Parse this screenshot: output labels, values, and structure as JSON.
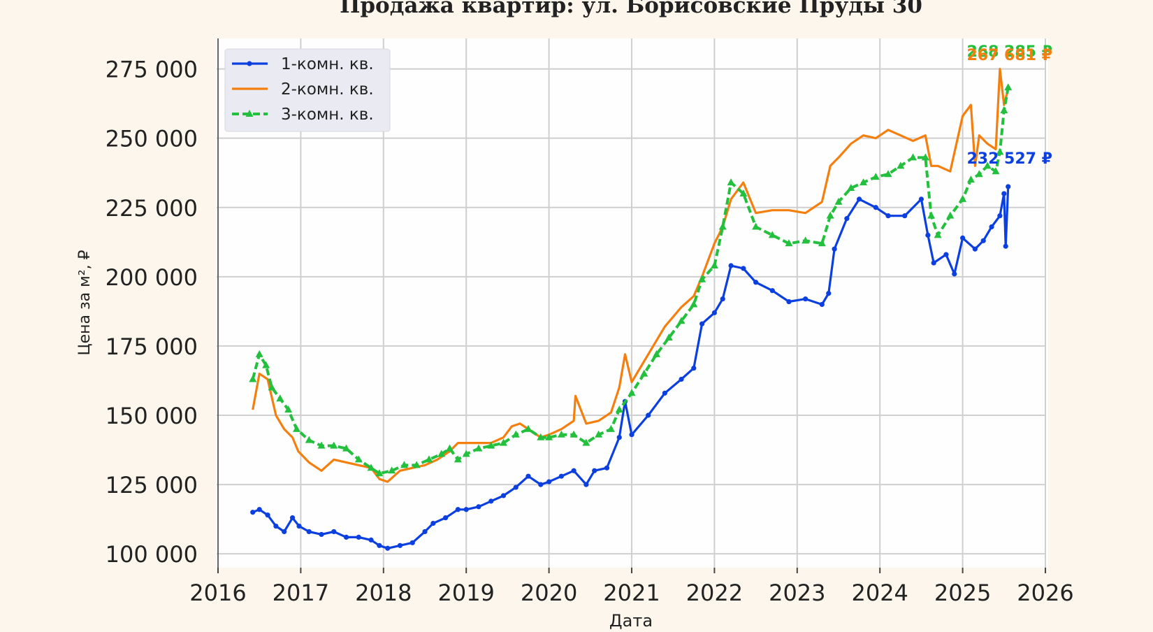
{
  "chart_data": {
    "type": "line",
    "title": "Продажа квартир: ул. Борисовские Пруды 30",
    "xlabel": "Дата",
    "ylabel": "Цена за м², ₽",
    "xlim": [
      2016,
      2026
    ],
    "ylim": [
      95000,
      286000
    ],
    "x_ticks": [
      2016,
      2017,
      2018,
      2019,
      2020,
      2021,
      2022,
      2023,
      2024,
      2025,
      2026
    ],
    "y_ticks": [
      100000,
      125000,
      150000,
      175000,
      200000,
      225000,
      250000,
      275000
    ],
    "y_tick_labels": [
      "100 000",
      "125 000",
      "150 000",
      "175 000",
      "200 000",
      "225 000",
      "250 000",
      "275 000"
    ],
    "x_tick_labels": [
      "2016",
      "2017",
      "2018",
      "2019",
      "2020",
      "2021",
      "2022",
      "2023",
      "2024",
      "2025",
      "2026"
    ],
    "grid": true,
    "legend_position": "top-left",
    "colors": {
      "one_room": "#0b3fe0",
      "two_room": "#f57f0e",
      "three_room": "#22c03c",
      "plot_bg": "#fefefe",
      "page_bg": "#fdf6ec",
      "grid": "#cccccc"
    },
    "series": [
      {
        "name": "1-комн. кв.",
        "style": "solid-dots",
        "x": [
          2016.42,
          2016.5,
          2016.6,
          2016.7,
          2016.8,
          2016.9,
          2016.98,
          2017.1,
          2017.25,
          2017.4,
          2017.55,
          2017.7,
          2017.85,
          2017.95,
          2018.05,
          2018.2,
          2018.35,
          2018.5,
          2018.6,
          2018.75,
          2018.9,
          2019.0,
          2019.15,
          2019.3,
          2019.45,
          2019.6,
          2019.75,
          2019.9,
          2020.0,
          2020.15,
          2020.3,
          2020.45,
          2020.55,
          2020.7,
          2020.85,
          2020.92,
          2021.0,
          2021.2,
          2021.4,
          2021.6,
          2021.75,
          2021.85,
          2022.0,
          2022.1,
          2022.2,
          2022.35,
          2022.5,
          2022.7,
          2022.9,
          2023.1,
          2023.3,
          2023.38,
          2023.45,
          2023.6,
          2023.75,
          2023.95,
          2024.1,
          2024.3,
          2024.5,
          2024.58,
          2024.65,
          2024.8,
          2024.9,
          2025.0,
          2025.15,
          2025.25,
          2025.35,
          2025.45,
          2025.5,
          2025.52,
          2025.55
        ],
        "values": [
          115000,
          116000,
          114000,
          110000,
          108000,
          113000,
          110000,
          108000,
          107000,
          108000,
          106000,
          106000,
          105000,
          103000,
          102000,
          103000,
          104000,
          108000,
          111000,
          113000,
          116000,
          116000,
          117000,
          119000,
          121000,
          124000,
          128000,
          125000,
          126000,
          128000,
          130000,
          125000,
          130000,
          131000,
          142000,
          155000,
          143000,
          150000,
          158000,
          163000,
          167000,
          183000,
          187000,
          192000,
          204000,
          203000,
          198000,
          195000,
          191000,
          192000,
          190000,
          194000,
          210000,
          221000,
          228000,
          225000,
          222000,
          222000,
          228000,
          215000,
          205000,
          208000,
          201000,
          214000,
          210000,
          213000,
          218000,
          222000,
          230000,
          211000,
          232527
        ]
      },
      {
        "name": "2-комн. кв.",
        "style": "solid",
        "x": [
          2016.42,
          2016.5,
          2016.6,
          2016.7,
          2016.8,
          2016.9,
          2016.97,
          2017.1,
          2017.25,
          2017.4,
          2017.55,
          2017.7,
          2017.85,
          2017.95,
          2018.05,
          2018.2,
          2018.35,
          2018.5,
          2018.65,
          2018.8,
          2018.9,
          2019.0,
          2019.15,
          2019.3,
          2019.45,
          2019.55,
          2019.65,
          2019.75,
          2019.9,
          2020.0,
          2020.15,
          2020.3,
          2020.32,
          2020.45,
          2020.6,
          2020.75,
          2020.85,
          2020.92,
          2021.0,
          2021.2,
          2021.4,
          2021.6,
          2021.75,
          2021.85,
          2022.0,
          2022.1,
          2022.2,
          2022.35,
          2022.5,
          2022.7,
          2022.9,
          2023.1,
          2023.3,
          2023.4,
          2023.5,
          2023.65,
          2023.8,
          2023.95,
          2024.1,
          2024.25,
          2024.4,
          2024.55,
          2024.62,
          2024.7,
          2024.85,
          2025.0,
          2025.1,
          2025.15,
          2025.2,
          2025.3,
          2025.4,
          2025.45,
          2025.5,
          2025.55
        ],
        "values": [
          152000,
          165000,
          163000,
          150000,
          145000,
          142000,
          137000,
          133000,
          130000,
          134000,
          133000,
          132000,
          131000,
          127000,
          126000,
          130000,
          131000,
          132000,
          134000,
          137000,
          140000,
          140000,
          140000,
          140000,
          142000,
          146000,
          147000,
          145000,
          142000,
          143000,
          145000,
          148000,
          157000,
          147000,
          148000,
          151000,
          160000,
          172000,
          162000,
          172000,
          182000,
          189000,
          193000,
          200000,
          212000,
          218000,
          228000,
          234000,
          223000,
          224000,
          224000,
          223000,
          227000,
          240000,
          243000,
          248000,
          251000,
          250000,
          253000,
          251000,
          249000,
          251000,
          240000,
          240000,
          238000,
          258000,
          262000,
          240000,
          251000,
          248000,
          246000,
          275000,
          262000,
          267681
        ]
      },
      {
        "name": "3-комн. кв.",
        "style": "dashed-triangles",
        "x": [
          2016.42,
          2016.5,
          2016.58,
          2016.65,
          2016.75,
          2016.85,
          2016.95,
          2017.1,
          2017.25,
          2017.4,
          2017.55,
          2017.7,
          2017.85,
          2017.95,
          2018.1,
          2018.25,
          2018.4,
          2018.55,
          2018.7,
          2018.8,
          2018.9,
          2019.0,
          2019.15,
          2019.3,
          2019.45,
          2019.6,
          2019.75,
          2019.9,
          2020.0,
          2020.15,
          2020.3,
          2020.45,
          2020.6,
          2020.75,
          2020.85,
          2021.0,
          2021.15,
          2021.3,
          2021.45,
          2021.6,
          2021.75,
          2021.85,
          2022.0,
          2022.1,
          2022.2,
          2022.35,
          2022.5,
          2022.7,
          2022.9,
          2023.1,
          2023.3,
          2023.4,
          2023.5,
          2023.65,
          2023.8,
          2023.95,
          2024.1,
          2024.25,
          2024.4,
          2024.55,
          2024.62,
          2024.7,
          2024.85,
          2025.0,
          2025.1,
          2025.2,
          2025.3,
          2025.4,
          2025.45,
          2025.5,
          2025.55
        ],
        "values": [
          163000,
          172000,
          168000,
          160000,
          156000,
          152000,
          145000,
          141000,
          139000,
          139000,
          138000,
          134000,
          131000,
          129000,
          130000,
          132000,
          132000,
          134000,
          136000,
          138000,
          134000,
          136000,
          138000,
          139000,
          140000,
          143000,
          145000,
          142000,
          142000,
          143000,
          143000,
          140000,
          143000,
          145000,
          152000,
          158000,
          165000,
          172000,
          178000,
          184000,
          190000,
          199000,
          204000,
          218000,
          234000,
          230000,
          218000,
          215000,
          212000,
          213000,
          212000,
          222000,
          227000,
          232000,
          234000,
          236000,
          237000,
          240000,
          243000,
          243000,
          222000,
          215000,
          222000,
          228000,
          235000,
          237000,
          240000,
          238000,
          245000,
          260000,
          268285
        ]
      }
    ],
    "annotations": [
      {
        "series": "3-комн. кв.",
        "text": "268 285 ₽",
        "x": 2025.55,
        "y": 279500
      },
      {
        "series": "2-комн. кв.",
        "text": "267 681 ₽",
        "x": 2025.55,
        "y": 278200
      },
      {
        "series": "1-комн. кв.",
        "text": "232 527 ₽",
        "x": 2025.55,
        "y": 240800
      }
    ]
  }
}
